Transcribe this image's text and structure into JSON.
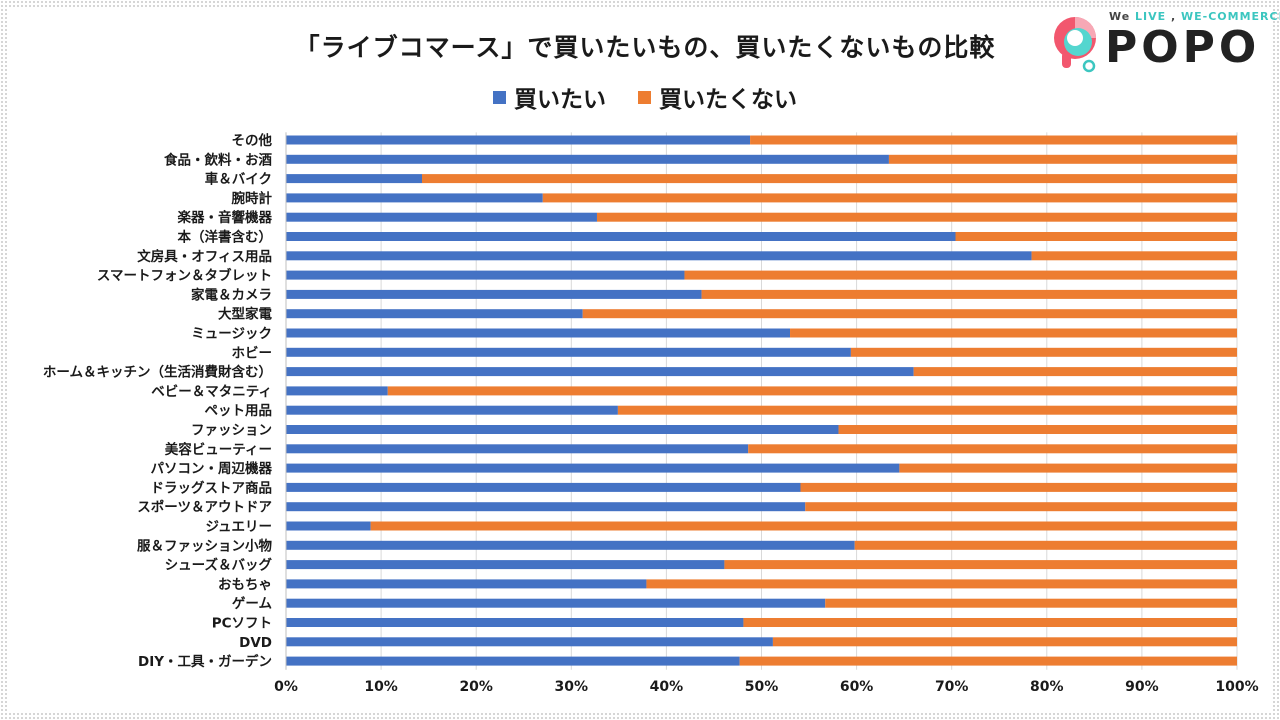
{
  "colors": {
    "want": "#4472c4",
    "notwant": "#ed7d31",
    "grid": "#d9d9d9",
    "text": "#1a1a1a"
  },
  "logo": {
    "tag_prefix": "We ",
    "tag_live": "LIVE",
    "tag_mid": " , ",
    "tag_we": "WE-COMMERCE",
    "word": "POPO"
  },
  "chart_data": {
    "type": "bar",
    "orientation": "horizontal",
    "stacked": "percent",
    "title": "「ライブコマース」で買いたいもの、買いたくないもの比較",
    "xlabel": "",
    "ylabel": "",
    "xlim": [
      0,
      100
    ],
    "legend_position": "top",
    "categories": [
      "その他",
      "食品・飲料・お酒",
      "車＆バイク",
      "腕時計",
      "楽器・音響機器",
      "本（洋書含む）",
      "文房具・オフィス用品",
      "スマートフォン＆タブレット",
      "家電＆カメラ",
      "大型家電",
      "ミュージック",
      "ホビー",
      "ホーム＆キッチン（生活消費財含む）",
      "ベビー＆マタニティ",
      "ペット用品",
      "ファッション",
      "美容ビューティー",
      "パソコン・周辺機器",
      "ドラッグストア商品",
      "スポーツ＆アウトドア",
      "ジュエリー",
      "服＆ファッション小物",
      "シューズ＆バッグ",
      "おもちゃ",
      "ゲーム",
      "PCソフト",
      "DVD",
      "DIY・工具・ガーデン"
    ],
    "series": [
      {
        "name": "買いたい",
        "values": [
          48.8,
          63.4,
          14.3,
          27.0,
          32.7,
          70.4,
          78.4,
          41.9,
          43.7,
          31.2,
          53.0,
          59.4,
          66.0,
          10.7,
          34.9,
          58.1,
          48.6,
          64.5,
          54.1,
          54.6,
          8.9,
          59.8,
          46.1,
          37.9,
          56.7,
          48.1,
          51.2,
          47.7
        ]
      },
      {
        "name": "買いたくない",
        "values": [
          51.2,
          36.6,
          85.7,
          73.0,
          67.3,
          29.6,
          21.6,
          58.1,
          56.3,
          68.8,
          47.0,
          40.6,
          34.0,
          89.3,
          65.1,
          41.9,
          51.4,
          35.5,
          45.9,
          45.4,
          91.1,
          40.2,
          53.9,
          62.1,
          43.3,
          51.9,
          48.8,
          52.3
        ]
      }
    ],
    "x_ticks": [
      "0%",
      "10%",
      "20%",
      "30%",
      "40%",
      "50%",
      "60%",
      "70%",
      "80%",
      "90%",
      "100%"
    ]
  }
}
